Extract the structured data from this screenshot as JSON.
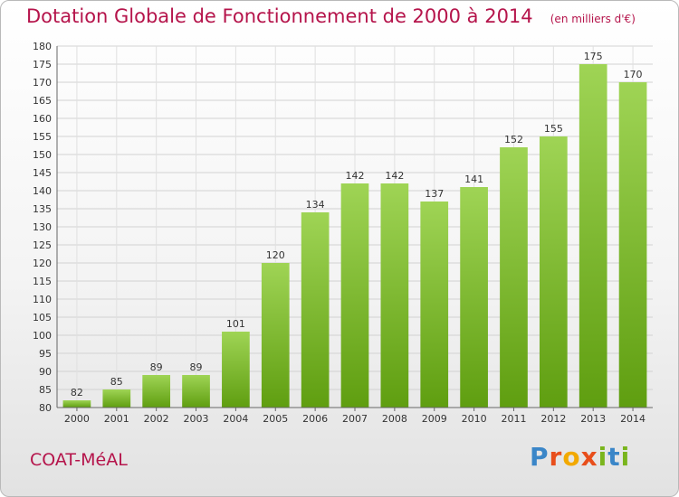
{
  "header": {
    "title": "Dotation Globale de Fonctionnement de 2000 à 2014",
    "subtitle": "(en milliers d'€)"
  },
  "footer": {
    "commune": "COAT-MéAL",
    "logo_letters": [
      {
        "char": "P",
        "color": "#3a86c8"
      },
      {
        "char": "r",
        "color": "#e84e1b"
      },
      {
        "char": "o",
        "color": "#f2a900"
      },
      {
        "char": "x",
        "color": "#e84e1b"
      },
      {
        "char": "i",
        "color": "#7ab51d"
      },
      {
        "char": "t",
        "color": "#3a86c8"
      },
      {
        "char": "i",
        "color": "#7ab51d"
      }
    ]
  },
  "chart_data": {
    "type": "bar",
    "categories": [
      "2000",
      "2001",
      "2002",
      "2003",
      "2004",
      "2005",
      "2006",
      "2007",
      "2008",
      "2009",
      "2010",
      "2011",
      "2012",
      "2013",
      "2014"
    ],
    "values": [
      82,
      85,
      89,
      89,
      101,
      120,
      134,
      142,
      142,
      137,
      141,
      152,
      155,
      175,
      170
    ],
    "title": "Dotation Globale de Fonctionnement de 2000 à 2014",
    "subtitle": "(en milliers d'€)",
    "xlabel": "",
    "ylabel": "",
    "ylim": [
      80,
      180
    ],
    "ytick_step": 5,
    "grid": true,
    "legend": "none",
    "bar_color_light": "#9fd455",
    "bar_color_dark": "#5f9e10"
  }
}
